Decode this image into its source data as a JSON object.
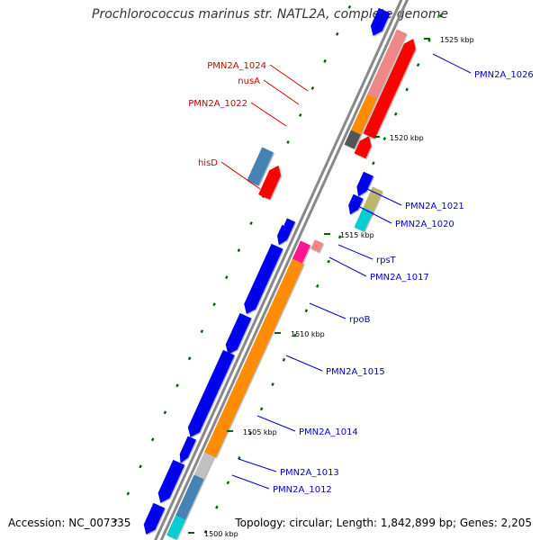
{
  "title": "Prochlorococcus marinus str. NATL2A, complete genome",
  "footer": {
    "accession": "Accession: NC_007335",
    "summary": "Topology: circular; Length: 1,842,899 bp; Genes: 2,205"
  },
  "ticks": [
    "1525 kbp",
    "1520 kbp",
    "1515 kbp",
    "1510 kbp",
    "1505 kbp",
    "1500 kbp"
  ],
  "labels": {
    "left": [
      "PMN2A_1024",
      "nusA",
      "PMN2A_1022",
      "hisD"
    ],
    "right": [
      "PMN2A_1026",
      "PMN2A_1021",
      "PMN2A_1020",
      "rpsT",
      "PMN2A_1017",
      "rpoB",
      "PMN2A_1015",
      "PMN2A_1014",
      "PMN2A_1013",
      "PMN2A_1012"
    ]
  },
  "colors": {
    "backbone": "#888888",
    "cds_forward": "#ff0000",
    "cds_forward_light": "#ee8888",
    "cds_reverse": "#0000ee",
    "gene_forward_accent": "#ff8c00",
    "gene_reverse_accent": "#c0c0c0",
    "gene_steelblue": "#4682b4",
    "gene_khaki": "#bdb76b",
    "gene_cyan": "#00ced1",
    "gene_magenta": "#ff1493",
    "gene_darkgray": "#555555",
    "gc_dots": "#006400",
    "label_forward": "#cc0000",
    "label_reverse": "#0000cc"
  }
}
